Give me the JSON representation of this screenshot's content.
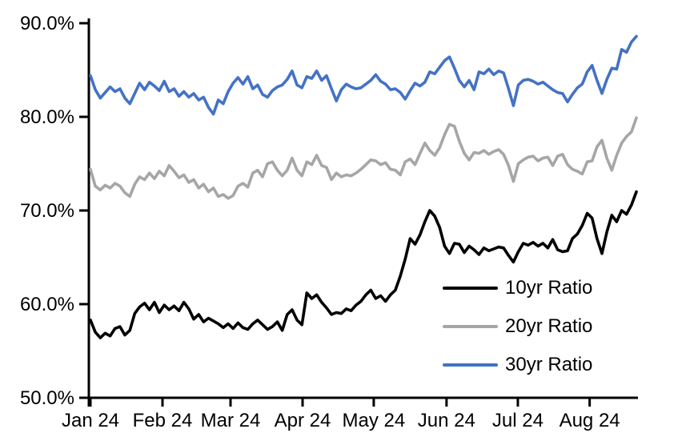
{
  "chart_data": {
    "type": "line",
    "title": "",
    "xlabel": "",
    "ylabel": "",
    "grid": "off",
    "background": "#FFFFFF",
    "y_axis": {
      "min": 50,
      "max": 90,
      "unit": "%",
      "ticks": [
        {
          "label": "90.0%",
          "value": 90
        },
        {
          "label": "80.0%",
          "value": 80
        },
        {
          "label": "70.0%",
          "value": 70
        },
        {
          "label": "60.0%",
          "value": 60
        },
        {
          "label": "50.0%",
          "value": 50
        }
      ]
    },
    "x_axis": {
      "n_points": 112,
      "ticks": [
        {
          "label": "Jan 24",
          "index": 0
        },
        {
          "label": "Feb 24",
          "index": 14.65
        },
        {
          "label": "Mar 24",
          "index": 28.48
        },
        {
          "label": "Apr 24",
          "index": 43.13
        },
        {
          "label": "May 24",
          "index": 57.6
        },
        {
          "label": "Jun 24",
          "index": 72.4
        },
        {
          "label": "Jul 24",
          "index": 86.9
        },
        {
          "label": "Aug 24",
          "index": 101.5
        }
      ]
    },
    "legend": {
      "position": "inside-lower-right"
    },
    "series": [
      {
        "name": "10yr Ratio",
        "color": "#000000",
        "values": [
          58.3,
          57.0,
          56.4,
          56.9,
          56.6,
          57.4,
          57.6,
          56.7,
          57.2,
          59.0,
          59.7,
          60.1,
          59.4,
          60.2,
          59.1,
          59.9,
          59.4,
          59.8,
          59.3,
          60.2,
          59.5,
          58.4,
          58.9,
          58.1,
          58.5,
          58.2,
          57.9,
          57.5,
          57.9,
          57.4,
          58.0,
          57.5,
          57.3,
          57.9,
          58.3,
          57.8,
          57.3,
          57.6,
          58.1,
          57.2,
          58.9,
          59.4,
          58.3,
          57.8,
          61.2,
          60.6,
          61.0,
          60.2,
          59.6,
          58.9,
          59.1,
          59.0,
          59.5,
          59.3,
          59.9,
          60.3,
          61.0,
          61.5,
          60.6,
          60.9,
          60.3,
          61.0,
          61.5,
          63.0,
          64.8,
          67.0,
          66.4,
          67.4,
          68.8,
          70.0,
          69.4,
          68.2,
          66.2,
          65.4,
          66.5,
          66.4,
          65.5,
          66.2,
          65.8,
          65.3,
          66.0,
          65.7,
          65.9,
          66.1,
          66.0,
          65.2,
          64.5,
          65.6,
          66.5,
          66.3,
          66.6,
          66.2,
          66.5,
          66.0,
          66.9,
          65.8,
          65.6,
          65.7,
          67.0,
          67.5,
          68.4,
          69.7,
          69.2,
          67.0,
          65.4,
          67.7,
          69.5,
          68.8,
          70.0,
          69.6,
          70.6,
          72.0
        ]
      },
      {
        "name": "20yr Ratio",
        "color": "#A6A6A6",
        "values": [
          74.4,
          72.6,
          72.2,
          72.7,
          72.4,
          72.9,
          72.6,
          71.9,
          71.5,
          72.8,
          73.6,
          73.3,
          74.0,
          73.4,
          74.2,
          73.7,
          74.8,
          74.2,
          73.5,
          73.8,
          73.0,
          73.3,
          72.4,
          72.8,
          72.0,
          72.4,
          71.5,
          71.7,
          71.3,
          71.6,
          72.6,
          72.9,
          72.5,
          74.0,
          74.3,
          73.6,
          75.0,
          75.2,
          74.3,
          73.7,
          74.3,
          75.6,
          74.3,
          73.7,
          75.2,
          74.9,
          75.9,
          74.8,
          74.6,
          73.3,
          74.0,
          73.6,
          73.8,
          73.7,
          74.0,
          74.4,
          74.9,
          75.4,
          75.3,
          74.9,
          75.1,
          74.4,
          74.3,
          73.8,
          75.2,
          75.5,
          74.9,
          76.1,
          77.2,
          76.4,
          75.9,
          76.7,
          78.1,
          79.2,
          79.0,
          77.4,
          76.1,
          75.4,
          76.2,
          76.1,
          76.4,
          76.0,
          76.3,
          76.5,
          76.0,
          74.8,
          73.1,
          75.0,
          75.4,
          75.7,
          75.8,
          75.3,
          75.6,
          75.7,
          74.8,
          75.8,
          76.0,
          74.9,
          74.4,
          74.2,
          73.9,
          75.2,
          75.3,
          76.8,
          77.5,
          75.6,
          74.3,
          75.9,
          77.2,
          77.9,
          78.4,
          79.9
        ]
      },
      {
        "name": "30yr Ratio",
        "color": "#4472C4",
        "values": [
          84.4,
          82.9,
          82.0,
          82.6,
          83.2,
          82.7,
          83.0,
          82.0,
          81.4,
          82.5,
          83.6,
          82.9,
          83.7,
          83.3,
          82.8,
          83.8,
          82.7,
          83.0,
          82.2,
          82.7,
          82.1,
          82.5,
          81.8,
          82.1,
          81.0,
          80.3,
          81.8,
          81.4,
          82.7,
          83.6,
          84.2,
          83.5,
          84.3,
          83.0,
          83.4,
          82.4,
          82.1,
          82.8,
          83.2,
          83.4,
          84.0,
          84.9,
          83.4,
          83.1,
          84.3,
          84.1,
          84.9,
          83.9,
          84.4,
          83.0,
          81.7,
          82.9,
          83.5,
          83.2,
          83.0,
          83.1,
          83.5,
          83.9,
          84.5,
          83.8,
          83.5,
          82.9,
          83.0,
          82.6,
          81.9,
          82.8,
          83.6,
          83.3,
          83.7,
          84.8,
          84.6,
          85.3,
          86.0,
          86.4,
          85.2,
          83.9,
          83.2,
          83.9,
          82.9,
          84.8,
          84.6,
          85.1,
          84.5,
          84.9,
          84.7,
          83.0,
          81.2,
          83.4,
          83.9,
          84.0,
          83.8,
          83.5,
          83.7,
          83.3,
          82.9,
          82.6,
          82.5,
          81.6,
          82.4,
          83.1,
          83.5,
          84.8,
          85.5,
          83.9,
          82.5,
          84.0,
          85.2,
          85.1,
          87.2,
          86.9,
          88.0,
          88.6
        ]
      }
    ]
  },
  "colors": {
    "axis": "#000000",
    "text": "#000000",
    "background": "#FFFFFF"
  }
}
